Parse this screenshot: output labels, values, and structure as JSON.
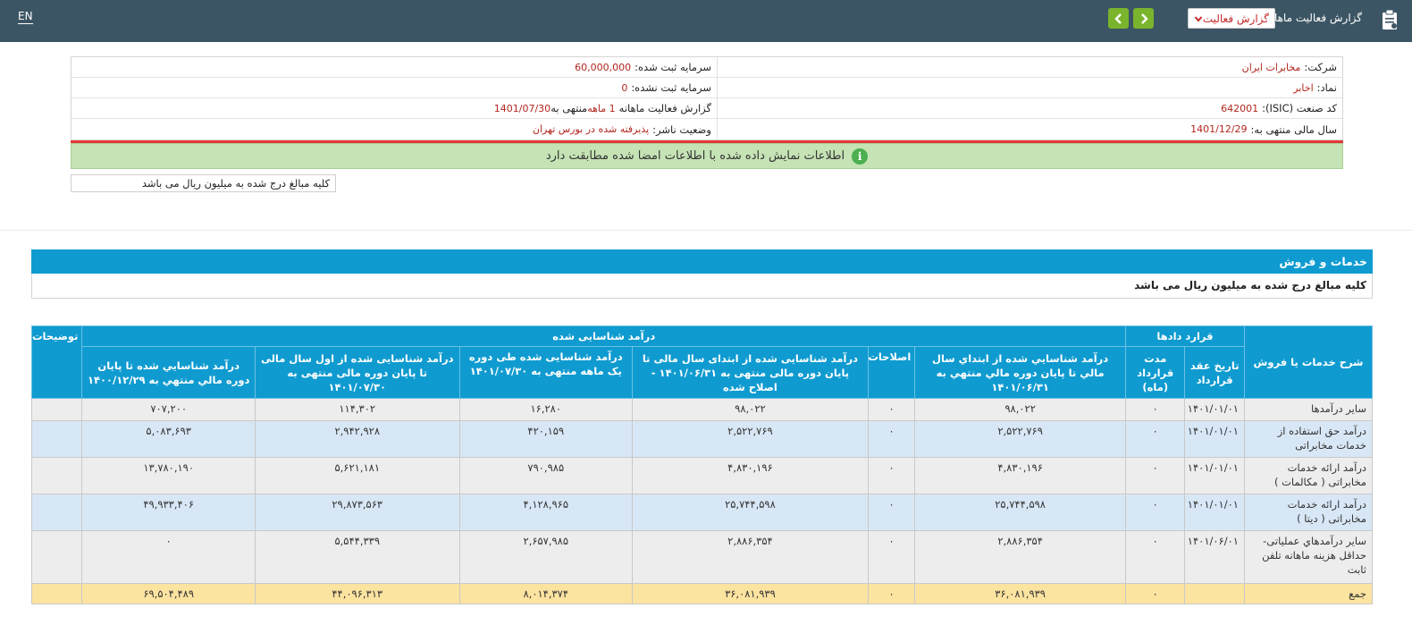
{
  "header": {
    "lang": "EN",
    "report_title": "گزارش فعالیت ماهانه",
    "report_select": "گزارش فعالیت",
    "icons": [
      "clipboard-icon",
      "chevron-down-icon",
      "chevron-left-icon",
      "chevron-right-icon"
    ]
  },
  "company": {
    "company_label": "شرکت:",
    "company_value": "مخابرات ایران",
    "symbol_label": "نماد:",
    "symbol_value": "اخابر",
    "isic_label": "کد صنعت (ISIC):",
    "isic_value": "642001",
    "fiscal_label": "سال مالی منتهی به:",
    "fiscal_value": "1401/12/29",
    "reg_capital_label": "سرمایه ثبت شده:",
    "reg_capital_value": "60,000,000",
    "unreg_capital_label": "سرمایه ثبت نشده:",
    "unreg_capital_value": "0",
    "report_label_a": "گزارش فعالیت ماهانه",
    "report_value_a": "1 ماهه",
    "report_label_b": "منتهی به",
    "report_value_b": "1401/07/30",
    "status_label": "وضعیت ناشر:",
    "status_value": "پذیرفته شده در بورس تهران"
  },
  "notice": {
    "message": "اطلاعات نمایش داده شده با اطلاعات امضا شده مطابقت دارد",
    "icon_glyph": "i",
    "unit_note": "کلیه مبالغ درج شده به میلیون ریال می باشد"
  },
  "section": {
    "title": "خدمات و فروش",
    "unit_note": "کلیه مبالغ درج شده به میلیون ریال می باشد"
  },
  "table": {
    "group_headers": {
      "desc": "شرح خدمات یا فروش",
      "contract": "قرارد دادها",
      "revenue": "درآمد شناسایی شده",
      "notes": "توضیحات"
    },
    "sub_headers": {
      "contract_date": "تاریخ عقد قرارداد",
      "contract_term": "مدت قرارداد (ماه)",
      "rev_start_prev": "درآمد شناسايي شده از ابتداي سال مالي تا پايان دوره مالي منتهي به ۱۴۰۱/۰۶/۳۱",
      "corrections": "اصلاحات",
      "rev_start_corrected": "درآمد شناسایی شده از ابتدای سال مالی تا پایان دوره مالی منتهی به ۱۴۰۱/۰۶/۳۱ - اصلاح شده",
      "rev_month": "درآمد شناسایی شده طی دوره یک ماهه منتهی به ۱۴۰۱/۰۷/۳۰",
      "rev_ytd": "درآمد شناسایی شده از اول سال مالی تا پایان دوره مالی منتهی به ۱۴۰۱/۰۷/۳۰",
      "rev_prev_year": "درآمد شناسايي شده تا پايان دوره مالي منتهي به ۱۴۰۰/۱۲/۲۹"
    },
    "rows": [
      {
        "desc": "سایر درآمدها",
        "date": "۱۴۰۱/۰۱/۰۱",
        "term": "۰",
        "rev_prev": "۹۸,۰۲۲",
        "corr": "۰",
        "rev_corr": "۹۸,۰۲۲",
        "rev_month": "۱۶,۲۸۰",
        "rev_ytd": "۱۱۴,۳۰۲",
        "rev_prev_year": "۷۰۷,۲۰۰",
        "notes": ""
      },
      {
        "desc": "درآمد حق استفاده از خدمات مخابراتی",
        "date": "۱۴۰۱/۰۱/۰۱",
        "term": "۰",
        "rev_prev": "۲,۵۲۲,۷۶۹",
        "corr": "۰",
        "rev_corr": "۲,۵۲۲,۷۶۹",
        "rev_month": "۴۲۰,۱۵۹",
        "rev_ytd": "۲,۹۴۲,۹۲۸",
        "rev_prev_year": "۵,۰۸۳,۶۹۳",
        "notes": ""
      },
      {
        "desc": "درآمد ارائه خدمات مخابراتی ( مکالمات )",
        "date": "۱۴۰۱/۰۱/۰۱",
        "term": "۰",
        "rev_prev": "۴,۸۳۰,۱۹۶",
        "corr": "۰",
        "rev_corr": "۴,۸۳۰,۱۹۶",
        "rev_month": "۷۹۰,۹۸۵",
        "rev_ytd": "۵,۶۲۱,۱۸۱",
        "rev_prev_year": "۱۳,۷۸۰,۱۹۰",
        "notes": ""
      },
      {
        "desc": "درآمد ارائه خدمات مخابراتی ( دیتا )",
        "date": "۱۴۰۱/۰۱/۰۱",
        "term": "۰",
        "rev_prev": "۲۵,۷۴۴,۵۹۸",
        "corr": "۰",
        "rev_corr": "۲۵,۷۴۴,۵۹۸",
        "rev_month": "۴,۱۲۸,۹۶۵",
        "rev_ytd": "۲۹,۸۷۳,۵۶۳",
        "rev_prev_year": "۴۹,۹۳۳,۴۰۶",
        "notes": ""
      },
      {
        "desc": "سایر درآمدهاي عملیاتی- حداقل هزینه ماهانه تلفن ثابت",
        "date": "۱۴۰۱/۰۶/۰۱",
        "term": "۰",
        "rev_prev": "۲,۸۸۶,۳۵۴",
        "corr": "۰",
        "rev_corr": "۲,۸۸۶,۳۵۴",
        "rev_month": "۲,۶۵۷,۹۸۵",
        "rev_ytd": "۵,۵۴۴,۳۳۹",
        "rev_prev_year": "۰",
        "notes": ""
      }
    ],
    "total": {
      "desc": "جمع",
      "date": "",
      "term": "۰",
      "rev_prev": "۳۶,۰۸۱,۹۳۹",
      "corr": "۰",
      "rev_corr": "۳۶,۰۸۱,۹۳۹",
      "rev_month": "۸,۰۱۴,۳۷۴",
      "rev_ytd": "۴۴,۰۹۶,۳۱۳",
      "rev_prev_year": "۶۹,۵۰۴,۴۸۹",
      "notes": ""
    }
  }
}
